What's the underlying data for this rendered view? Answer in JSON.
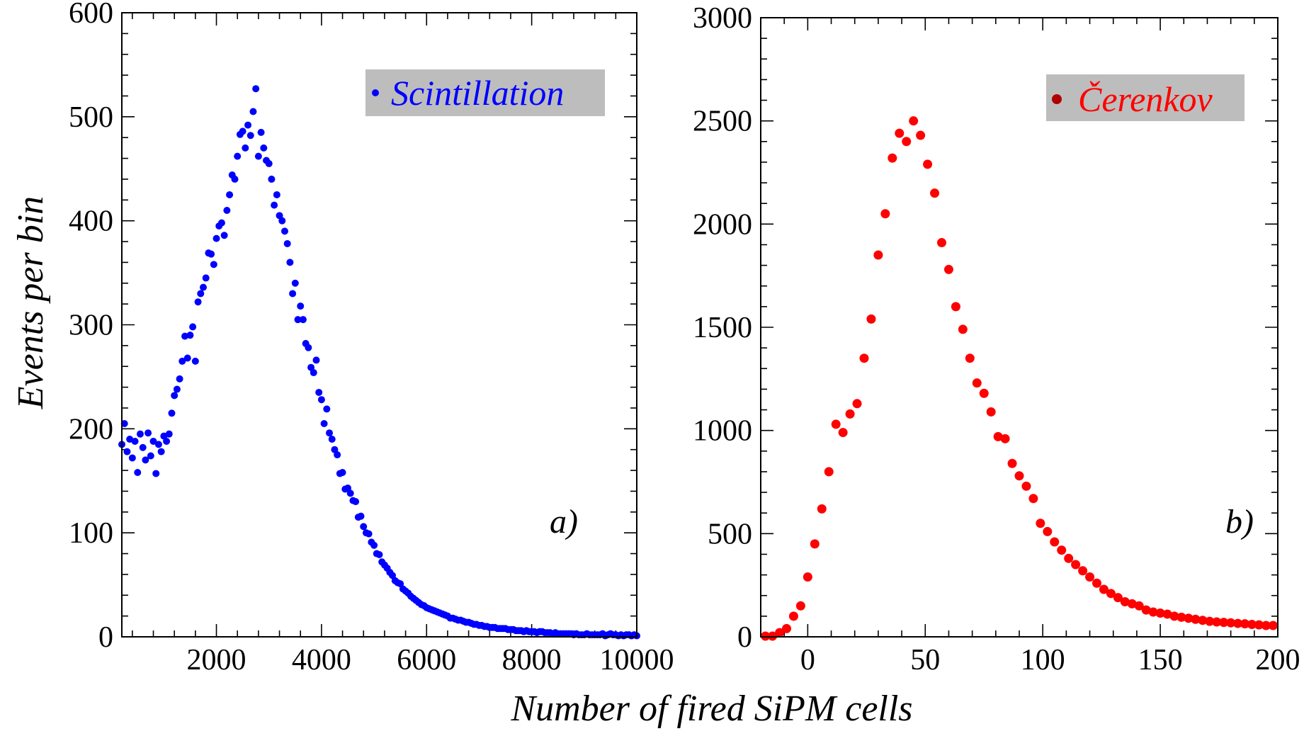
{
  "figure": {
    "ylabel": "Events per bin",
    "xlabel": "Number of fired SiPM cells"
  },
  "colors": {
    "scintillation": "#0000ff",
    "cerenkov": "#ff0000",
    "cerenkov_legend_marker": "#b00000",
    "legend_background": "#bdbdbd"
  },
  "chart_data": [
    {
      "type": "scatter",
      "panel_label": "a)",
      "legend": {
        "label": "Scintillation",
        "placement": "top-right"
      },
      "xlim": [
        200,
        10000
      ],
      "ylim": [
        0,
        600
      ],
      "xticks": [
        2000,
        4000,
        6000,
        8000,
        10000
      ],
      "yticks": [
        0,
        100,
        200,
        300,
        400,
        500,
        600
      ],
      "grid": false,
      "series": [
        {
          "name": "Scintillation",
          "x": [
            200,
            250,
            300,
            350,
            400,
            450,
            500,
            550,
            600,
            650,
            700,
            750,
            800,
            850,
            900,
            950,
            1000,
            1050,
            1100,
            1150,
            1200,
            1250,
            1300,
            1350,
            1400,
            1450,
            1500,
            1550,
            1600,
            1650,
            1700,
            1750,
            1800,
            1850,
            1900,
            1950,
            2000,
            2050,
            2100,
            2150,
            2200,
            2250,
            2300,
            2350,
            2400,
            2450,
            2500,
            2550,
            2600,
            2650,
            2700,
            2750,
            2800,
            2850,
            2900,
            2950,
            3000,
            3050,
            3100,
            3150,
            3200,
            3250,
            3300,
            3350,
            3400,
            3450,
            3500,
            3550,
            3600,
            3650,
            3700,
            3750,
            3800,
            3850,
            3900,
            3950,
            4000,
            4050,
            4100,
            4150,
            4200,
            4250,
            4300,
            4350,
            4400,
            4450,
            4500,
            4550,
            4600,
            4650,
            4700,
            4750,
            4800,
            4850,
            4900,
            4950,
            5000,
            5050,
            5100,
            5150,
            5200,
            5250,
            5300,
            5350,
            5400,
            5450,
            5500,
            5550,
            5600,
            5650,
            5700,
            5750,
            5800,
            5850,
            5900,
            5950,
            6000,
            6050,
            6100,
            6150,
            6200,
            6250,
            6300,
            6350,
            6400,
            6450,
            6500,
            6550,
            6600,
            6650,
            6700,
            6750,
            6800,
            6850,
            6900,
            6950,
            7000,
            7050,
            7100,
            7150,
            7200,
            7250,
            7300,
            7350,
            7400,
            7450,
            7500,
            7550,
            7600,
            7650,
            7700,
            7750,
            7800,
            7850,
            7900,
            7950,
            8000,
            8050,
            8100,
            8150,
            8200,
            8250,
            8300,
            8350,
            8400,
            8450,
            8500,
            8550,
            8600,
            8650,
            8700,
            8750,
            8800,
            8850,
            8900,
            8950,
            9000,
            9050,
            9100,
            9150,
            9200,
            9250,
            9300,
            9350,
            9400,
            9450,
            9500,
            9550,
            9600,
            9650,
            9700,
            9750,
            9800,
            9850,
            9900,
            9950,
            10000
          ],
          "y": [
            185,
            205,
            178,
            190,
            172,
            188,
            158,
            195,
            182,
            170,
            196,
            174,
            188,
            157,
            185,
            178,
            193,
            188,
            195,
            215,
            232,
            238,
            248,
            265,
            289,
            268,
            290,
            298,
            265,
            322,
            330,
            336,
            345,
            369,
            368,
            358,
            383,
            395,
            398,
            386,
            410,
            425,
            444,
            440,
            462,
            483,
            486,
            470,
            492,
            482,
            505,
            527,
            462,
            485,
            470,
            458,
            455,
            440,
            415,
            425,
            405,
            400,
            390,
            378,
            360,
            330,
            340,
            305,
            318,
            305,
            282,
            278,
            259,
            254,
            266,
            235,
            228,
            205,
            219,
            196,
            190,
            180,
            175,
            157,
            158,
            142,
            143,
            138,
            131,
            130,
            115,
            116,
            106,
            100,
            99,
            91,
            88,
            80,
            79,
            72,
            69,
            66,
            62,
            59,
            54,
            52,
            51,
            46,
            44,
            42,
            39,
            37,
            35,
            33,
            31,
            30,
            28,
            27,
            26,
            25,
            24,
            23,
            22,
            21,
            20,
            18,
            18,
            17,
            16,
            16,
            15,
            14,
            14,
            13,
            12,
            12,
            11,
            11,
            10,
            10,
            9,
            9,
            9,
            8,
            8,
            8,
            8,
            7,
            7,
            7,
            6,
            6,
            6,
            5,
            6,
            5,
            5,
            5,
            4,
            5,
            5,
            4,
            4,
            4,
            3,
            4,
            3,
            3,
            3,
            3,
            3,
            3,
            2,
            3,
            2,
            2,
            2,
            3,
            2,
            2,
            2,
            2,
            2,
            3,
            1,
            2,
            3,
            2,
            2,
            1,
            2,
            1,
            2,
            2,
            1,
            2,
            1
          ]
        }
      ]
    },
    {
      "type": "scatter",
      "panel_label": "b)",
      "legend": {
        "label": "Čerenkov",
        "placement": "top-right"
      },
      "xlim": [
        -20,
        200
      ],
      "ylim": [
        0,
        3000
      ],
      "xticks": [
        0,
        50,
        100,
        150,
        200
      ],
      "yticks": [
        0,
        500,
        1000,
        1500,
        2000,
        2500,
        3000
      ],
      "grid": false,
      "series": [
        {
          "name": "Čerenkov",
          "x": [
            -18,
            -15,
            -12,
            -9,
            -6,
            -3,
            0,
            3,
            6,
            9,
            12,
            15,
            18,
            21,
            24,
            27,
            30,
            33,
            36,
            39,
            42,
            45,
            48,
            51,
            54,
            57,
            60,
            63,
            66,
            69,
            72,
            75,
            78,
            81,
            84,
            87,
            90,
            93,
            96,
            99,
            102,
            105,
            108,
            111,
            114,
            117,
            120,
            123,
            126,
            129,
            132,
            135,
            138,
            141,
            144,
            147,
            150,
            153,
            156,
            159,
            162,
            165,
            168,
            171,
            174,
            177,
            180,
            183,
            186,
            189,
            192,
            195,
            198,
            201
          ],
          "y": [
            0,
            0,
            20,
            40,
            100,
            150,
            290,
            450,
            620,
            800,
            1030,
            990,
            1080,
            1130,
            1350,
            1540,
            1850,
            2050,
            2320,
            2440,
            2400,
            2500,
            2430,
            2290,
            2150,
            1910,
            1780,
            1600,
            1490,
            1350,
            1230,
            1180,
            1090,
            970,
            960,
            840,
            780,
            730,
            670,
            550,
            510,
            460,
            420,
            380,
            350,
            320,
            290,
            260,
            230,
            210,
            190,
            170,
            160,
            150,
            130,
            120,
            115,
            110,
            100,
            95,
            90,
            85,
            80,
            75,
            72,
            70,
            68,
            65,
            63,
            60,
            58,
            55,
            55,
            55
          ]
        }
      ]
    }
  ]
}
